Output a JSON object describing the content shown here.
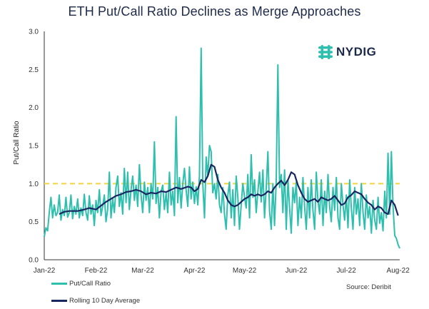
{
  "chart_data": {
    "type": "line",
    "title": "ETH Put/Call Ratio Declines as Merge Approaches",
    "ylabel": "Put/Call Ratio",
    "xlabel": "",
    "ylim": [
      0.0,
      3.0
    ],
    "yticks": [
      0.0,
      0.5,
      1.0,
      1.5,
      2.0,
      2.5,
      3.0
    ],
    "ytick_labels": [
      "0.0",
      "0.5",
      "1.0",
      "1.5",
      "2.0",
      "2.5",
      "3.0"
    ],
    "xlim_days": [
      0,
      213
    ],
    "x_tick_labels": [
      "Jan-22",
      "Feb-22",
      "Mar-22",
      "Apr-22",
      "May-22",
      "Jun-22",
      "Jul-22",
      "Aug-22"
    ],
    "x_tick_days": [
      0,
      31,
      59,
      90,
      120,
      151,
      181,
      212
    ],
    "reference_line": {
      "y": 1.0,
      "color": "#f2d64b",
      "style": "dashed"
    },
    "series": [
      {
        "name": "Put/Call Ratio",
        "color": "#2fbfae",
        "anchors": [
          [
            0,
            0.3
          ],
          [
            1,
            0.42
          ],
          [
            2,
            0.38
          ],
          [
            3,
            0.62
          ],
          [
            4,
            0.82
          ],
          [
            5,
            0.55
          ],
          [
            6,
            0.72
          ],
          [
            7,
            0.58
          ],
          [
            8,
            0.62
          ],
          [
            9,
            0.85
          ],
          [
            10,
            0.52
          ],
          [
            11,
            0.66
          ],
          [
            12,
            0.58
          ],
          [
            13,
            0.82
          ],
          [
            14,
            0.56
          ],
          [
            15,
            0.62
          ],
          [
            16,
            0.85
          ],
          [
            17,
            0.54
          ],
          [
            18,
            0.7
          ],
          [
            19,
            0.6
          ],
          [
            20,
            0.8
          ],
          [
            21,
            0.55
          ],
          [
            22,
            0.68
          ],
          [
            23,
            0.58
          ],
          [
            24,
            0.86
          ],
          [
            25,
            0.62
          ],
          [
            26,
            0.52
          ],
          [
            27,
            0.84
          ],
          [
            28,
            0.6
          ],
          [
            29,
            0.72
          ],
          [
            30,
            0.45
          ],
          [
            31,
            0.78
          ],
          [
            32,
            0.62
          ],
          [
            33,
            0.92
          ],
          [
            34,
            0.58
          ],
          [
            35,
            0.7
          ],
          [
            36,
            0.85
          ],
          [
            37,
            0.5
          ],
          [
            38,
            0.66
          ],
          [
            39,
            1.15
          ],
          [
            40,
            0.55
          ],
          [
            41,
            0.8
          ],
          [
            42,
            0.62
          ],
          [
            43,
            0.95
          ],
          [
            44,
            1.1
          ],
          [
            45,
            0.7
          ],
          [
            46,
            0.88
          ],
          [
            47,
            0.6
          ],
          [
            48,
            1.2
          ],
          [
            49,
            0.75
          ],
          [
            50,
            1.15
          ],
          [
            51,
            0.66
          ],
          [
            52,
            0.92
          ],
          [
            53,
            1.1
          ],
          [
            54,
            0.78
          ],
          [
            55,
            0.98
          ],
          [
            56,
            0.7
          ],
          [
            57,
            1.25
          ],
          [
            58,
            0.85
          ],
          [
            59,
            0.62
          ],
          [
            60,
            1.02
          ],
          [
            61,
            0.78
          ],
          [
            62,
            0.95
          ],
          [
            63,
            0.62
          ],
          [
            64,
            1.0
          ],
          [
            65,
            0.8
          ],
          [
            66,
            1.55
          ],
          [
            67,
            0.74
          ],
          [
            68,
            0.95
          ],
          [
            69,
            0.55
          ],
          [
            70,
            0.9
          ],
          [
            71,
            0.98
          ],
          [
            72,
            0.66
          ],
          [
            73,
            0.88
          ],
          [
            74,
            0.62
          ],
          [
            75,
            1.15
          ],
          [
            76,
            0.72
          ],
          [
            77,
            0.9
          ],
          [
            78,
            0.58
          ],
          [
            79,
            1.88
          ],
          [
            80,
            0.75
          ],
          [
            81,
            1.08
          ],
          [
            82,
            0.68
          ],
          [
            83,
            1.0
          ],
          [
            84,
            1.2
          ],
          [
            85,
            0.92
          ],
          [
            86,
            0.7
          ],
          [
            87,
            1.22
          ],
          [
            88,
            0.8
          ],
          [
            89,
            1.02
          ],
          [
            90,
            0.74
          ],
          [
            91,
            0.96
          ],
          [
            92,
            0.72
          ],
          [
            93,
            1.1
          ],
          [
            94,
            2.78
          ],
          [
            95,
            1.0
          ],
          [
            96,
            0.55
          ],
          [
            97,
            1.35
          ],
          [
            98,
            1.1
          ],
          [
            99,
            1.5
          ],
          [
            100,
            1.42
          ],
          [
            101,
            0.88
          ],
          [
            102,
            1.0
          ],
          [
            103,
            0.8
          ],
          [
            104,
            1.12
          ],
          [
            105,
            0.72
          ],
          [
            106,
            0.62
          ],
          [
            107,
            0.95
          ],
          [
            108,
            0.6
          ],
          [
            109,
            0.4
          ],
          [
            110,
            0.85
          ],
          [
            111,
            1.02
          ],
          [
            112,
            0.55
          ],
          [
            113,
            0.92
          ],
          [
            114,
            0.45
          ],
          [
            115,
            1.1
          ],
          [
            116,
            0.82
          ],
          [
            117,
            0.4
          ],
          [
            118,
            0.72
          ],
          [
            119,
            1.0
          ],
          [
            120,
            0.82
          ],
          [
            121,
            0.68
          ],
          [
            122,
            1.12
          ],
          [
            123,
            0.55
          ],
          [
            124,
            1.38
          ],
          [
            125,
            0.82
          ],
          [
            126,
            1.05
          ],
          [
            127,
            0.62
          ],
          [
            128,
            0.9
          ],
          [
            129,
            1.15
          ],
          [
            130,
            0.76
          ],
          [
            131,
            1.18
          ],
          [
            132,
            0.55
          ],
          [
            133,
            0.95
          ],
          [
            134,
            1.42
          ],
          [
            135,
            0.64
          ],
          [
            136,
            0.4
          ],
          [
            137,
            1.0
          ],
          [
            138,
            0.45
          ],
          [
            139,
            1.05
          ],
          [
            140,
            2.56
          ],
          [
            141,
            0.95
          ],
          [
            142,
            1.12
          ],
          [
            143,
            0.62
          ],
          [
            144,
            1.18
          ],
          [
            145,
            0.4
          ],
          [
            146,
            1.05
          ],
          [
            147,
            0.68
          ],
          [
            148,
            0.35
          ],
          [
            149,
            0.95
          ],
          [
            150,
            0.75
          ],
          [
            151,
            1.02
          ],
          [
            152,
            0.45
          ],
          [
            153,
            0.82
          ],
          [
            154,
            0.55
          ],
          [
            155,
            1.08
          ],
          [
            156,
            0.7
          ],
          [
            157,
            0.4
          ],
          [
            158,
            0.95
          ],
          [
            159,
            0.55
          ],
          [
            160,
            1.05
          ],
          [
            161,
            0.65
          ],
          [
            162,
            0.4
          ],
          [
            163,
            1.15
          ],
          [
            164,
            0.78
          ],
          [
            165,
            0.6
          ],
          [
            166,
            1.05
          ],
          [
            167,
            0.45
          ],
          [
            168,
            0.9
          ],
          [
            169,
            0.62
          ],
          [
            170,
            1.12
          ],
          [
            171,
            0.7
          ],
          [
            172,
            0.5
          ],
          [
            173,
            0.95
          ],
          [
            174,
            0.65
          ],
          [
            175,
            1.08
          ],
          [
            176,
            0.55
          ],
          [
            177,
            0.4
          ],
          [
            178,
            1.0
          ],
          [
            179,
            0.72
          ],
          [
            180,
            0.52
          ],
          [
            181,
            0.85
          ],
          [
            182,
            0.42
          ],
          [
            183,
            1.05
          ],
          [
            184,
            0.68
          ],
          [
            185,
            0.4
          ],
          [
            186,
            0.95
          ],
          [
            187,
            0.6
          ],
          [
            188,
            0.8
          ],
          [
            189,
            0.45
          ],
          [
            190,
            1.0
          ],
          [
            191,
            0.62
          ],
          [
            192,
            0.4
          ],
          [
            193,
            0.85
          ],
          [
            194,
            0.55
          ],
          [
            195,
            0.7
          ],
          [
            196,
            0.35
          ],
          [
            197,
            0.78
          ],
          [
            198,
            0.52
          ],
          [
            199,
            0.4
          ],
          [
            200,
            0.82
          ],
          [
            201,
            0.48
          ],
          [
            202,
            0.62
          ],
          [
            203,
            0.38
          ],
          [
            204,
            0.9
          ],
          [
            205,
            0.55
          ],
          [
            206,
            1.4
          ],
          [
            207,
            0.6
          ],
          [
            208,
            1.42
          ],
          [
            209,
            0.7
          ],
          [
            210,
            0.32
          ],
          [
            211,
            0.28
          ],
          [
            212,
            0.2
          ],
          [
            213,
            0.15
          ]
        ]
      },
      {
        "name": "Rolling 10 Day Average",
        "color": "#182761",
        "anchors": [
          [
            9,
            0.6
          ],
          [
            12,
            0.63
          ],
          [
            15,
            0.64
          ],
          [
            20,
            0.64
          ],
          [
            24,
            0.66
          ],
          [
            27,
            0.68
          ],
          [
            31,
            0.66
          ],
          [
            34,
            0.71
          ],
          [
            37,
            0.76
          ],
          [
            40,
            0.8
          ],
          [
            43,
            0.84
          ],
          [
            46,
            0.86
          ],
          [
            49,
            0.89
          ],
          [
            52,
            0.9
          ],
          [
            55,
            0.92
          ],
          [
            58,
            0.9
          ],
          [
            61,
            0.86
          ],
          [
            64,
            0.88
          ],
          [
            67,
            0.87
          ],
          [
            70,
            0.9
          ],
          [
            73,
            0.89
          ],
          [
            76,
            0.92
          ],
          [
            79,
            0.95
          ],
          [
            82,
            0.93
          ],
          [
            86,
            0.96
          ],
          [
            88,
            0.95
          ],
          [
            90,
            0.9
          ],
          [
            92,
            0.93
          ],
          [
            94,
            1.05
          ],
          [
            96,
            1.02
          ],
          [
            98,
            1.1
          ],
          [
            100,
            1.25
          ],
          [
            102,
            1.22
          ],
          [
            104,
            1.05
          ],
          [
            106,
            0.95
          ],
          [
            108,
            0.88
          ],
          [
            110,
            0.78
          ],
          [
            112,
            0.72
          ],
          [
            114,
            0.7
          ],
          [
            116,
            0.72
          ],
          [
            118,
            0.76
          ],
          [
            120,
            0.8
          ],
          [
            122,
            0.82
          ],
          [
            124,
            0.86
          ],
          [
            126,
            0.84
          ],
          [
            128,
            0.86
          ],
          [
            130,
            0.84
          ],
          [
            132,
            0.86
          ],
          [
            134,
            0.9
          ],
          [
            136,
            0.88
          ],
          [
            138,
            0.95
          ],
          [
            140,
            1.0
          ],
          [
            142,
            1.04
          ],
          [
            144,
            0.98
          ],
          [
            146,
            1.05
          ],
          [
            148,
            1.15
          ],
          [
            150,
            1.12
          ],
          [
            152,
            0.98
          ],
          [
            154,
            0.88
          ],
          [
            156,
            0.8
          ],
          [
            158,
            0.76
          ],
          [
            160,
            0.78
          ],
          [
            162,
            0.8
          ],
          [
            164,
            0.76
          ],
          [
            166,
            0.82
          ],
          [
            168,
            0.8
          ],
          [
            170,
            0.78
          ],
          [
            172,
            0.8
          ],
          [
            174,
            0.84
          ],
          [
            176,
            0.78
          ],
          [
            178,
            0.72
          ],
          [
            180,
            0.74
          ],
          [
            182,
            0.82
          ],
          [
            184,
            0.85
          ],
          [
            186,
            0.9
          ],
          [
            188,
            0.88
          ],
          [
            190,
            0.86
          ],
          [
            192,
            0.8
          ],
          [
            194,
            0.75
          ],
          [
            196,
            0.72
          ],
          [
            198,
            0.66
          ],
          [
            200,
            0.7
          ],
          [
            202,
            0.68
          ],
          [
            204,
            0.62
          ],
          [
            206,
            0.6
          ],
          [
            208,
            0.78
          ],
          [
            210,
            0.72
          ],
          [
            212,
            0.58
          ]
        ]
      }
    ]
  },
  "brand": {
    "name": "NYDIG",
    "color": "#2fbfae"
  },
  "source": "Source: Deribit"
}
